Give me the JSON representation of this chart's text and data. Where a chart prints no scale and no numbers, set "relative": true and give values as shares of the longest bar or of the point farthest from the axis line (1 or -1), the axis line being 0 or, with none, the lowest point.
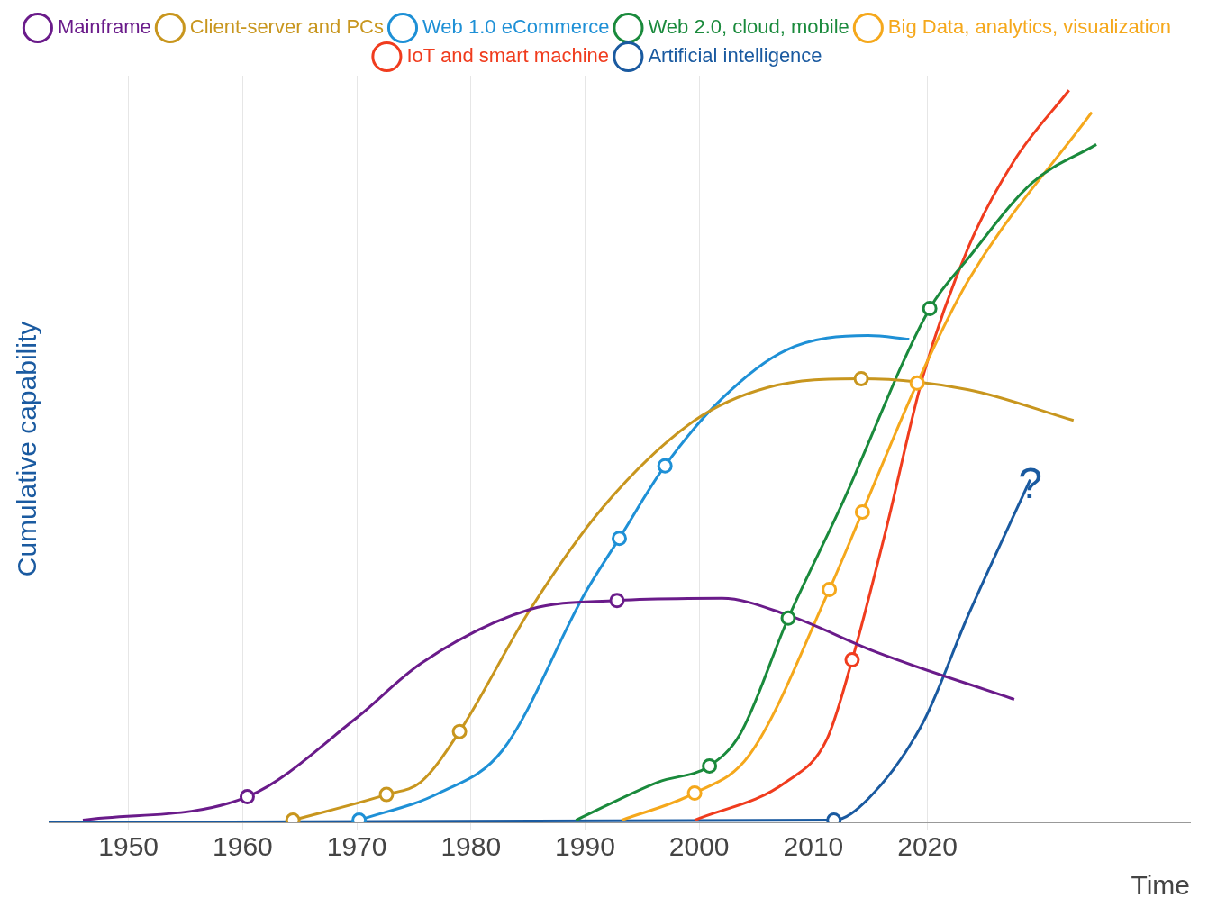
{
  "chart_data": {
    "type": "line",
    "relative": true,
    "xlabel": "Time",
    "ylabel": "Cumulative capability",
    "xlim": [
      1943,
      2043
    ],
    "xticks": [
      1950,
      1960,
      1970,
      1980,
      1990,
      2000,
      2010,
      2020
    ],
    "grid": "x",
    "legend": "top",
    "line_style": "solid",
    "annotations": [
      "?"
    ],
    "series": [
      {
        "name": "Mainframe",
        "color": "#6a1b8a",
        "x": [
          1946,
          1960.4,
          1970,
          1975.6,
          1985.2,
          1992.8,
          2002,
          2007.6,
          2015.6,
          2027.6
        ],
        "values": [
          0.003,
          0.035,
          0.143,
          0.217,
          0.291,
          0.303,
          0.306,
          0.284,
          0.232,
          0.168
        ]
      },
      {
        "name": "Client-server and PCs",
        "color": "#c8961e",
        "x": [
          1964.4,
          1972.6,
          1975.6,
          1979,
          1985.2,
          1991.6,
          1999.6,
          2006,
          2014.2,
          2023.6,
          2032.8
        ],
        "values": [
          0.003,
          0.038,
          0.055,
          0.124,
          0.291,
          0.431,
          0.549,
          0.594,
          0.606,
          0.591,
          0.549
        ]
      },
      {
        "name": "Web 1.0 eCommerce",
        "color": "#1e90d6",
        "x": [
          1970.2,
          1977.2,
          1982.8,
          1990,
          1993,
          1997,
          2002,
          2007.6,
          2014.8,
          2018.4
        ],
        "values": [
          0.003,
          0.04,
          0.099,
          0.313,
          0.388,
          0.487,
          0.579,
          0.645,
          0.665,
          0.66
        ]
      },
      {
        "name": "Web 2.0, cloud, mobile",
        "color": "#1a8a3c",
        "x": [
          1989.2,
          1996.4,
          2000.9,
          2003.6,
          2007.8,
          2012.4,
          2020.2,
          2023.6,
          2029.2,
          2034.8
        ],
        "values": [
          0.003,
          0.055,
          0.077,
          0.121,
          0.279,
          0.431,
          0.702,
          0.771,
          0.874,
          0.926
        ]
      },
      {
        "name": "Big Data, analytics, visualization",
        "color": "#f5a81c",
        "x": [
          1993.2,
          1999.6,
          2004.4,
          2011.4,
          2014.3,
          2019.1,
          2023.6,
          2034.4
        ],
        "values": [
          0.003,
          0.04,
          0.092,
          0.318,
          0.424,
          0.6,
          0.741,
          0.97
        ]
      },
      {
        "name": "IoT and smart machine",
        "color": "#f03c1e",
        "x": [
          1999.6,
          2007.6,
          2011.2,
          2013.4,
          2016.4,
          2019.6,
          2023.6,
          2027.6,
          2032.4
        ],
        "values": [
          0.003,
          0.055,
          0.114,
          0.222,
          0.402,
          0.609,
          0.786,
          0.904,
          1
        ]
      },
      {
        "name": "Artificial intelligence",
        "color": "#1a5aa0",
        "x": [
          1943,
          2011.8,
          2014.8,
          2019.6,
          2023.6,
          2029
        ],
        "values": [
          0,
          0.003,
          0.032,
          0.136,
          0.284,
          0.468
        ]
      },
      {
        "type": "scatter",
        "color": "#6a1b8a",
        "x": [
          1960.4,
          1992.8
        ],
        "values": [
          0.035,
          0.303
        ]
      },
      {
        "type": "scatter",
        "color": "#c8961e",
        "x": [
          1964.4,
          1972.6,
          1979,
          2014.2
        ],
        "values": [
          0.003,
          0.038,
          0.124,
          0.606
        ]
      },
      {
        "type": "scatter",
        "color": "#1e90d6",
        "x": [
          1970.2,
          1993,
          1997
        ],
        "values": [
          0.003,
          0.388,
          0.487
        ]
      },
      {
        "type": "scatter",
        "color": "#1a8a3c",
        "x": [
          2000.9,
          2007.8,
          2020.2
        ],
        "values": [
          0.077,
          0.279,
          0.702
        ]
      },
      {
        "type": "scatter",
        "color": "#f5a81c",
        "x": [
          1999.6,
          2011.4,
          2014.3,
          2019.1
        ],
        "values": [
          0.04,
          0.318,
          0.424,
          0.6
        ]
      },
      {
        "type": "scatter",
        "color": "#f03c1e",
        "x": [
          2013.4
        ],
        "values": [
          0.222
        ]
      },
      {
        "type": "scatter",
        "color": "#1a5aa0",
        "x": [
          2011.8
        ],
        "values": [
          0.003
        ]
      }
    ]
  }
}
